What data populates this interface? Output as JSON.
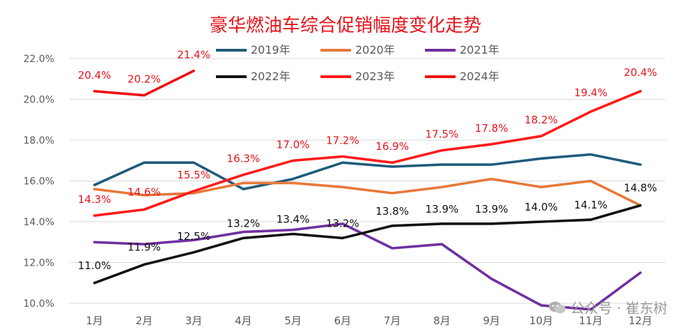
{
  "chart_data": {
    "type": "line",
    "title": "豪华燃油车综合促销幅度变化走势",
    "xlabel": "",
    "ylabel": "",
    "categories": [
      "1月",
      "2月",
      "3月",
      "4月",
      "5月",
      "6月",
      "7月",
      "8月",
      "9月",
      "10月",
      "11月",
      "12月"
    ],
    "ylim": [
      10.0,
      22.0
    ],
    "yticks": [
      "10.0%",
      "12.0%",
      "14.0%",
      "16.0%",
      "18.0%",
      "20.0%",
      "22.0%"
    ],
    "grid": true,
    "legend_position": "top",
    "series": [
      {
        "name": "2019年",
        "color": "#1f5c7a",
        "values": [
          15.8,
          16.9,
          16.9,
          15.6,
          16.1,
          16.9,
          16.7,
          16.8,
          16.8,
          17.1,
          17.3,
          16.8
        ],
        "labels": []
      },
      {
        "name": "2020年",
        "color": "#e8783a",
        "values": [
          15.6,
          15.3,
          15.4,
          15.9,
          15.9,
          15.7,
          15.4,
          15.7,
          16.1,
          15.7,
          16.0,
          14.8
        ],
        "labels": []
      },
      {
        "name": "2021年",
        "color": "#7030a0",
        "values": [
          13.0,
          12.9,
          13.1,
          13.5,
          13.6,
          13.9,
          12.7,
          12.9,
          11.2,
          9.9,
          9.7,
          11.5
        ],
        "labels": []
      },
      {
        "name": "2022年",
        "color": "#111111",
        "values": [
          11.0,
          11.9,
          12.5,
          13.2,
          13.4,
          13.2,
          13.8,
          13.9,
          13.9,
          14.0,
          14.1,
          14.8
        ],
        "labels": [
          "11.0%",
          "11.9%",
          "12.5%",
          "13.2%",
          "13.4%",
          "13.2%",
          "13.8%",
          "13.9%",
          "13.9%",
          "14.0%",
          "14.1%",
          "14.8%"
        ]
      },
      {
        "name": "2023年",
        "color": "#ff1a1a",
        "values": [
          14.3,
          14.6,
          15.5,
          16.3,
          17.0,
          17.2,
          16.9,
          17.5,
          17.8,
          18.2,
          19.4,
          20.4
        ],
        "labels": [
          "14.3%",
          "14.6%",
          "15.5%",
          "16.3%",
          "17.0%",
          "17.2%",
          "16.9%",
          "17.5%",
          "17.8%",
          "18.2%",
          "19.4%",
          "20.4%"
        ]
      },
      {
        "name": "2024年",
        "color": "#ee1111",
        "values": [
          20.4,
          20.2,
          21.4,
          null,
          null,
          null,
          null,
          null,
          null,
          null,
          null,
          null
        ],
        "labels": [
          "20.4%",
          "20.2%",
          "21.4%"
        ]
      }
    ]
  },
  "watermark": "公众号 · 崔东树"
}
